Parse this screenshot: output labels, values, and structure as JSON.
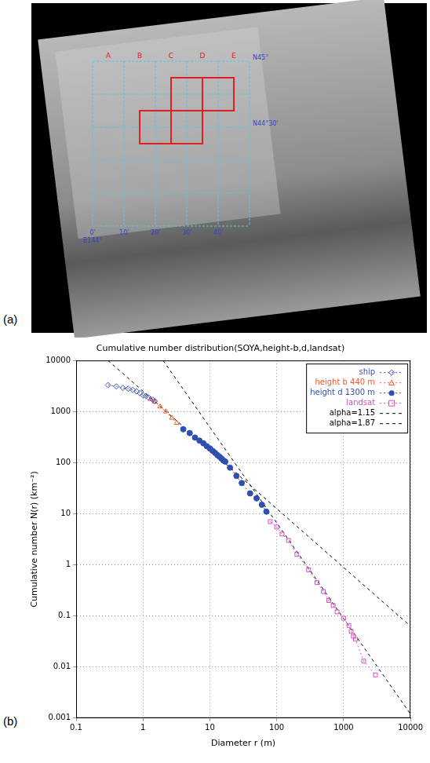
{
  "panel_labels": [
    "(a)",
    "(b)"
  ],
  "panel_a": {
    "grid_columns": [
      "A",
      "B",
      "C",
      "D",
      "E"
    ],
    "lat_labels": [
      "N45°",
      "N44°30'"
    ],
    "lon_labels": [
      "0'",
      "10'",
      "20'",
      "30'",
      "40'"
    ],
    "lon_origin": "E144°"
  },
  "chart_data": {
    "type": "scatter",
    "title": "Cumulative number distribution(SOYA,height-b,d,landsat)",
    "x_label": "Diameter r (m)",
    "y_label": "Cumulative number N(r) (km⁻²)",
    "log": true,
    "grid": true,
    "legend": "upper right",
    "xlim": [
      0.1,
      10000
    ],
    "ylim": [
      0.001,
      10000
    ],
    "xticks": [
      0.1,
      1,
      10,
      100,
      1000,
      10000
    ],
    "yticks": [
      0.001,
      0.01,
      0.1,
      1,
      10,
      100,
      1000,
      10000
    ],
    "series": [
      {
        "name": "ship",
        "color": "#3a4fc0",
        "marker": "diamond",
        "line_style": "dotted",
        "x": [
          0.3,
          0.4,
          0.5,
          0.6,
          0.7,
          0.8,
          0.9,
          1.0,
          1.1,
          1.2,
          1.4,
          1.5
        ],
        "values": [
          3300,
          3100,
          2900,
          2800,
          2650,
          2500,
          2300,
          2100,
          2000,
          1900,
          1700,
          1600
        ]
      },
      {
        "name": "height b 440 m",
        "color": "#f05a28",
        "marker": "triangle",
        "line_style": "dotted",
        "x": [
          1.3,
          1.5,
          1.8,
          2.2,
          2.7,
          3.2
        ],
        "values": [
          1750,
          1550,
          1250,
          1000,
          750,
          600
        ]
      },
      {
        "name": "height d 1300 m",
        "color": "#2f4fb0",
        "marker": "filled_circle",
        "line_style": "dotted",
        "x": [
          4,
          5,
          6,
          7,
          8,
          9,
          10,
          11,
          12,
          13,
          14,
          15,
          16,
          17,
          20,
          25,
          30,
          40,
          50,
          60,
          70
        ],
        "values": [
          450,
          380,
          310,
          270,
          240,
          210,
          190,
          170,
          155,
          140,
          130,
          120,
          110,
          105,
          80,
          55,
          40,
          25,
          20,
          15,
          11
        ]
      },
      {
        "name": "landsat",
        "color": "#d04fbf",
        "marker": "square",
        "line_style": "dotted",
        "x": [
          80,
          100,
          120,
          150,
          200,
          300,
          400,
          500,
          600,
          700,
          800,
          1000,
          1200,
          1300,
          1400,
          1500,
          2000,
          3000
        ],
        "values": [
          7,
          5.5,
          4,
          3,
          1.6,
          0.8,
          0.45,
          0.3,
          0.2,
          0.16,
          0.12,
          0.09,
          0.065,
          0.05,
          0.04,
          0.035,
          0.013,
          0.007
        ]
      },
      {
        "name": "alpha=1.15",
        "color": "#000000",
        "marker": "none",
        "line_style": "dashed",
        "x": [
          0.3,
          10000
        ],
        "values": [
          10000,
          0.063
        ]
      },
      {
        "name": "alpha=1.87",
        "color": "#000000",
        "marker": "none",
        "line_style": "dashed",
        "x": [
          2,
          10000
        ],
        "values": [
          10000,
          0.0012
        ]
      }
    ]
  }
}
